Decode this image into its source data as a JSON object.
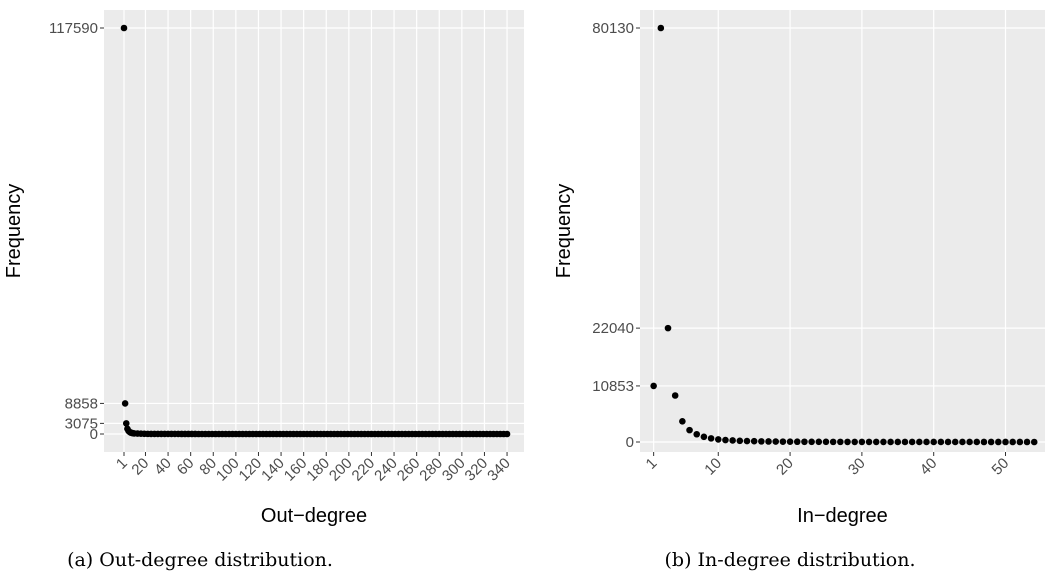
{
  "chart_data": [
    {
      "type": "scatter",
      "xlabel": "Out−degree",
      "ylabel": "Frequency",
      "caption": "(a) Out-degree distribution.",
      "x": [
        1,
        2,
        3,
        4,
        5,
        6,
        7,
        8,
        9,
        10,
        13,
        16,
        19,
        22,
        25,
        28,
        31,
        34,
        37,
        40,
        43,
        46,
        49,
        52,
        55,
        58,
        61,
        64,
        67,
        70,
        73,
        76,
        79,
        82,
        85,
        88,
        91,
        94,
        97,
        100,
        103,
        106,
        109,
        112,
        115,
        118,
        121,
        124,
        127,
        130,
        133,
        136,
        139,
        142,
        145,
        148,
        151,
        154,
        157,
        160,
        163,
        166,
        169,
        172,
        175,
        178,
        181,
        184,
        187,
        190,
        193,
        196,
        199,
        202,
        205,
        208,
        211,
        214,
        217,
        220,
        223,
        226,
        229,
        232,
        235,
        238,
        241,
        244,
        247,
        250,
        253,
        256,
        259,
        262,
        265,
        268,
        271,
        274,
        277,
        280,
        283,
        286,
        289,
        292,
        295,
        298,
        301,
        304,
        307,
        310,
        313,
        316,
        319,
        322,
        325,
        328,
        331,
        334,
        337,
        340
      ],
      "values": [
        117590,
        8858,
        3075,
        1500,
        900,
        600,
        400,
        300,
        220,
        170,
        120,
        80,
        55,
        40,
        30,
        24,
        20,
        16,
        13,
        11,
        9,
        8,
        7,
        6,
        5,
        5,
        4,
        4,
        3,
        3,
        2,
        2,
        2,
        2,
        2,
        2,
        2,
        2,
        2,
        2,
        2,
        2,
        2,
        2,
        2,
        2,
        2,
        2,
        2,
        2,
        2,
        2,
        2,
        2,
        2,
        2,
        2,
        2,
        2,
        2,
        1,
        1,
        1,
        1,
        1,
        1,
        1,
        1,
        1,
        1,
        1,
        1,
        1,
        1,
        1,
        1,
        1,
        1,
        1,
        1,
        1,
        1,
        1,
        1,
        1,
        1,
        1,
        1,
        1,
        1,
        1,
        1,
        1,
        1,
        1,
        1,
        1,
        1,
        1,
        1,
        1,
        1,
        1,
        1,
        1,
        1,
        1,
        1,
        1,
        1,
        1,
        1,
        1,
        1,
        1,
        1,
        1,
        1,
        1,
        1
      ],
      "color": "#000000",
      "xlim": [
        -16.7,
        355
      ],
      "xticks": [
        1,
        20,
        40,
        60,
        80,
        100,
        120,
        140,
        160,
        180,
        200,
        220,
        240,
        260,
        280,
        300,
        320,
        340
      ],
      "ylim": [
        -5213,
        122800
      ],
      "yticks": [
        0,
        3075,
        8858,
        117590
      ],
      "grid": true
    },
    {
      "type": "scatter",
      "xlabel": "In−degree",
      "ylabel": "Frequency",
      "caption": "(b) In-degree distribution.",
      "x": [
        1,
        2,
        3,
        4,
        5,
        6,
        7,
        8,
        9,
        10,
        11,
        12,
        13,
        14,
        15,
        16,
        17,
        18,
        19,
        20,
        21,
        22,
        23,
        24,
        25,
        26,
        27,
        28,
        29,
        30,
        31,
        32,
        33,
        34,
        35,
        36,
        37,
        38,
        39,
        40,
        41,
        42,
        43,
        44,
        45,
        46,
        47,
        48,
        49,
        50,
        51,
        52,
        53,
        54
      ],
      "values": [
        10853,
        80130,
        22040,
        9000,
        4000,
        2300,
        1500,
        1000,
        700,
        500,
        380,
        300,
        230,
        180,
        150,
        120,
        100,
        85,
        70,
        60,
        52,
        45,
        40,
        35,
        30,
        27,
        24,
        21,
        19,
        17,
        15,
        14,
        13,
        12,
        11,
        10,
        9,
        8,
        8,
        7,
        7,
        6,
        6,
        5,
        5,
        5,
        4,
        4,
        4,
        3,
        3,
        3,
        3,
        2
      ],
      "color": "#000000",
      "xlim": [
        -0.9,
        55.5
      ],
      "xticks": [
        1,
        10,
        20,
        30,
        40,
        50
      ],
      "ylim": [
        -1935,
        83614
      ],
      "yticks": [
        0,
        10853,
        22040,
        80130
      ],
      "grid": true
    }
  ]
}
